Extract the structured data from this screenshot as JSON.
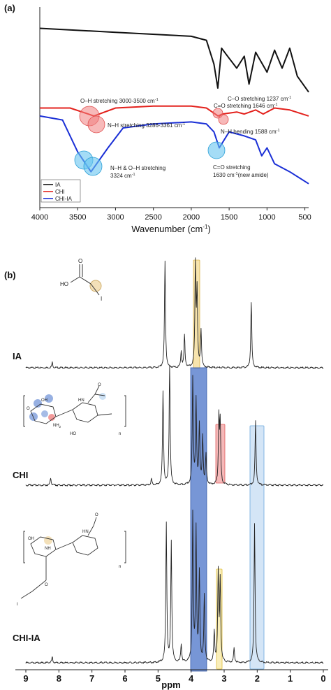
{
  "panel_a": {
    "label": "(a)",
    "xlabel": "Wavenumber (cm",
    "xlabel_sup": "-1",
    "xlabel_end": ")",
    "legend": [
      {
        "name": "IA",
        "color": "#111111"
      },
      {
        "name": "CHI",
        "color": "#e3211c"
      },
      {
        "name": "CHI-IA",
        "color": "#1a2fd6"
      }
    ],
    "annotations": {
      "oh_stretch": "O–H stretching 3000-3500 cm",
      "nh_stretch": "N–H stretching 3286-3361 cm",
      "co_stretch_ia": "C–O stretching 1237 cm",
      "co_stretch_chi": "C=O stretching 1646 cm",
      "nh_bend": "N–H bending 1588 cm",
      "nh_oh_1": "N–H & O–H stretching",
      "nh_oh_2": "3324 cm",
      "amide_1": "C=O stretching",
      "amide_2": "1630 cm",
      "amide_2_tail": "(new amide)",
      "sup": "-1"
    }
  },
  "panel_b": {
    "label": "(b)",
    "xlabel": "ppm",
    "trace_labels": [
      "IA",
      "CHI",
      "CHI-IA"
    ],
    "struct_ho": "HO",
    "struct_i": "I",
    "struct_nh2": "NH",
    "struct_nh2_sub": "2",
    "struct_nh": "NH",
    "struct_hn": "HN",
    "struct_n": "n"
  },
  "chart_data": [
    {
      "type": "line",
      "title": "",
      "xlabel": "Wavenumber (cm-1)",
      "ylabel": "",
      "xlim": [
        4000,
        450
      ],
      "x_ticks": [
        4000,
        3500,
        3000,
        2500,
        2000,
        1500,
        1000,
        500
      ],
      "series": [
        {
          "name": "IA",
          "color": "#111111",
          "x": [
            4000,
            3000,
            2000,
            1800,
            1700,
            1650,
            1600,
            1500,
            1400,
            1300,
            1237,
            1150,
            1000,
            900,
            800,
            700,
            600,
            450
          ],
          "y": [
            0.9,
            0.88,
            0.86,
            0.84,
            0.72,
            0.6,
            0.8,
            0.75,
            0.7,
            0.76,
            0.62,
            0.78,
            0.68,
            0.79,
            0.7,
            0.8,
            0.66,
            0.58
          ]
        },
        {
          "name": "CHI",
          "color": "#e3211c",
          "x": [
            4000,
            3600,
            3361,
            3286,
            3000,
            2500,
            2000,
            1800,
            1646,
            1588,
            1400,
            1300,
            1150,
            1050,
            900,
            700,
            450
          ],
          "y": [
            0.5,
            0.5,
            0.47,
            0.46,
            0.5,
            0.51,
            0.51,
            0.5,
            0.46,
            0.47,
            0.48,
            0.47,
            0.49,
            0.47,
            0.5,
            0.49,
            0.46
          ]
        },
        {
          "name": "CHI-IA",
          "color": "#1a2fd6",
          "x": [
            4000,
            3700,
            3500,
            3324,
            3100,
            2900,
            2500,
            2000,
            1800,
            1700,
            1630,
            1500,
            1300,
            1150,
            1070,
            1000,
            900,
            700,
            450
          ],
          "y": [
            0.46,
            0.44,
            0.28,
            0.18,
            0.3,
            0.4,
            0.42,
            0.43,
            0.42,
            0.38,
            0.3,
            0.38,
            0.36,
            0.34,
            0.26,
            0.3,
            0.22,
            0.18,
            0.12
          ]
        }
      ]
    },
    {
      "type": "line",
      "title": "",
      "xlabel": "ppm",
      "ylabel": "",
      "xlim": [
        9,
        0
      ],
      "x_ticks": [
        9,
        8,
        7,
        6,
        5,
        4,
        3,
        2,
        1,
        0
      ],
      "series": [
        {
          "name": "IA",
          "peaks_ppm": [
            8.2,
            4.79,
            4.3,
            4.2,
            3.87,
            3.82,
            3.7,
            2.18
          ],
          "peaks_height": [
            0.05,
            1.0,
            0.15,
            0.3,
            0.95,
            0.7,
            0.35,
            0.62
          ]
        },
        {
          "name": "CHI",
          "peaks_ppm": [
            8.25,
            5.2,
            4.85,
            4.65,
            3.95,
            3.85,
            3.75,
            3.65,
            3.55,
            3.16,
            3.12,
            2.05
          ],
          "peaks_height": [
            0.06,
            0.05,
            0.78,
            1.0,
            0.9,
            0.7,
            0.5,
            0.4,
            0.25,
            0.55,
            0.5,
            0.54
          ]
        },
        {
          "name": "CHI-IA",
          "peaks_ppm": [
            8.2,
            4.75,
            4.6,
            4.3,
            3.95,
            3.85,
            3.75,
            3.6,
            3.3,
            3.18,
            3.12,
            2.7,
            2.08
          ],
          "peaks_height": [
            0.04,
            0.95,
            0.82,
            0.12,
            1.0,
            0.9,
            0.6,
            0.45,
            0.2,
            0.6,
            0.55,
            0.1,
            0.95
          ]
        }
      ],
      "highlight_bands_ppm": [
        {
          "range": [
            3.93,
            3.83
          ],
          "color": "#f3d98a",
          "trace": "IA"
        },
        {
          "range": [
            4.0,
            3.55
          ],
          "color": "#4a73c8",
          "trace": "CHI,CHI-IA"
        },
        {
          "range": [
            3.25,
            3.05
          ],
          "color": "#f2a0a0",
          "trace": "CHI"
        },
        {
          "range": [
            2.2,
            1.95
          ],
          "color": "#b8d4f0",
          "trace": "CHI,CHI-IA"
        },
        {
          "range": [
            3.22,
            3.08
          ],
          "color": "#f5e28a",
          "trace": "CHI-IA"
        }
      ]
    }
  ]
}
